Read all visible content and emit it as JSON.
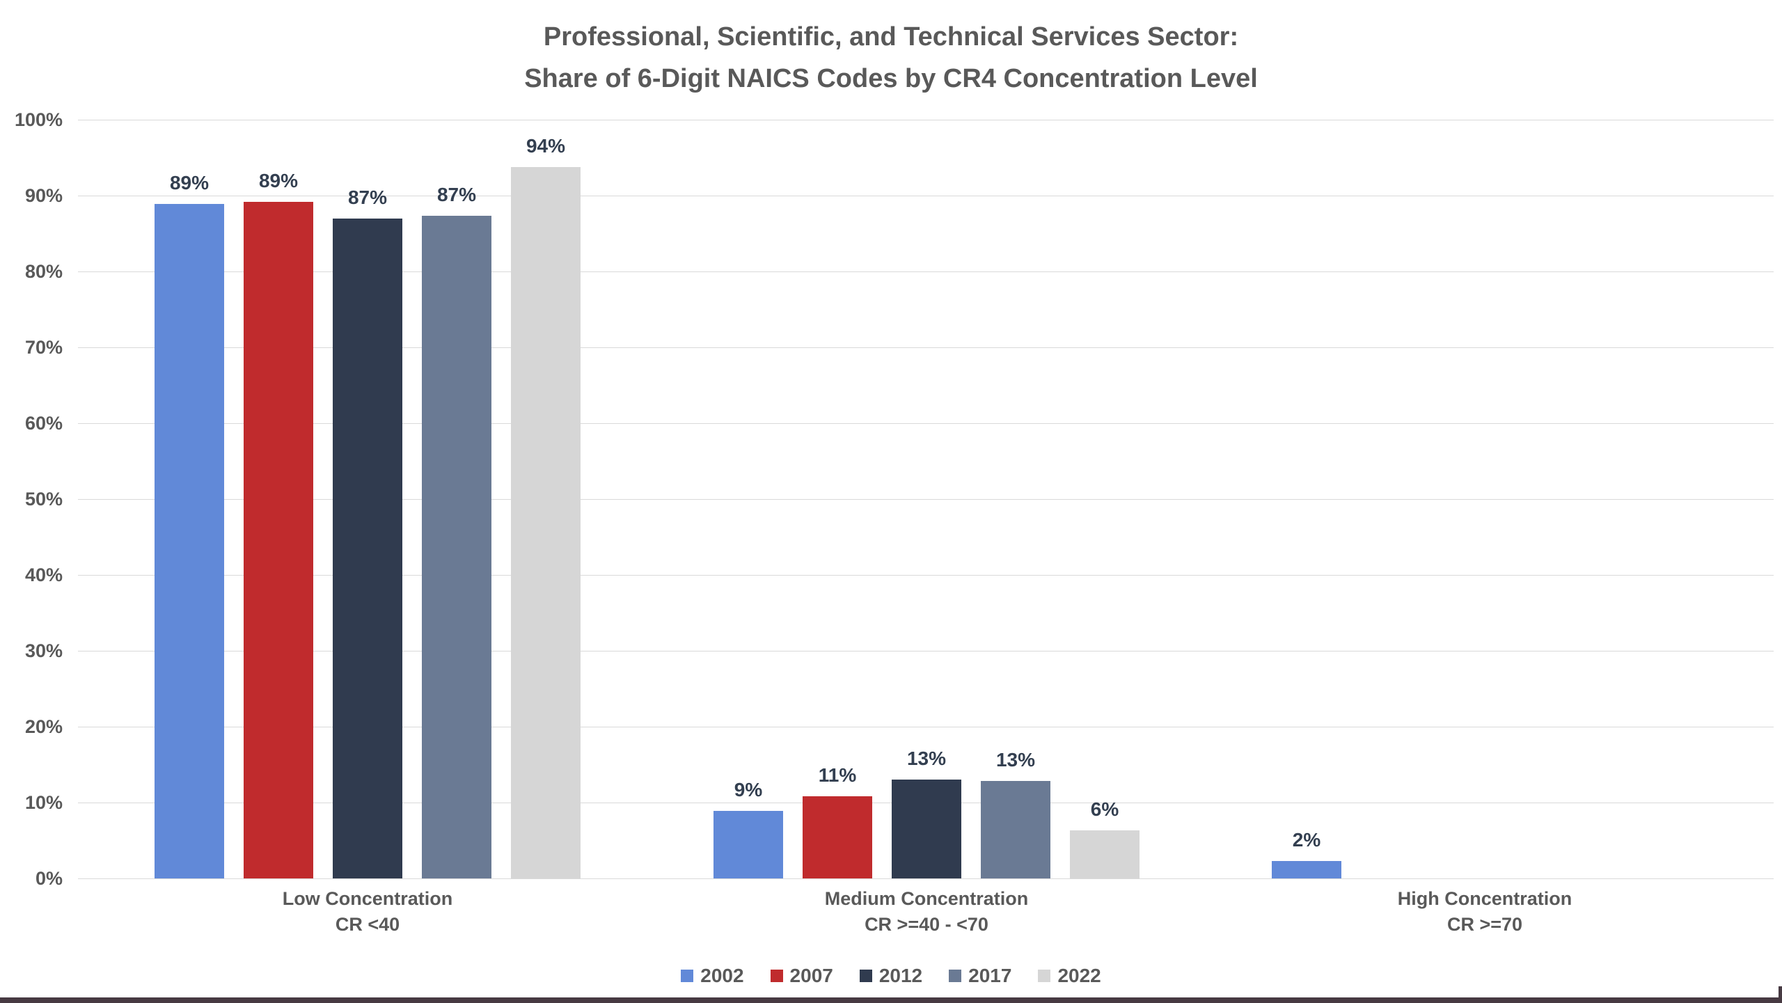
{
  "chart_data": {
    "type": "bar",
    "title": "Professional, Scientific, and Technical Services Sector:",
    "subtitle": "Share of 6-Digit NAICS Codes by CR4 Concentration Level",
    "categories": [
      {
        "line1": "Low Concentration",
        "line2": "CR <40"
      },
      {
        "line1": "Medium Concentration",
        "line2": "CR >=40 - <70"
      },
      {
        "line1": "High Concentration",
        "line2": "CR >=70"
      }
    ],
    "series": [
      {
        "name": "2002",
        "color": "#6189d8",
        "values": [
          88.9,
          8.9,
          2.3
        ],
        "labels": [
          "89%",
          "9%",
          "2%"
        ]
      },
      {
        "name": "2007",
        "color": "#c02b2d",
        "values": [
          89.2,
          10.8,
          0
        ],
        "labels": [
          "89%",
          "11%",
          ""
        ]
      },
      {
        "name": "2012",
        "color": "#303b4f",
        "values": [
          87.0,
          13.0,
          0
        ],
        "labels": [
          "87%",
          "13%",
          ""
        ]
      },
      {
        "name": "2017",
        "color": "#6a7a94",
        "values": [
          87.3,
          12.8,
          0
        ],
        "labels": [
          "87%",
          "13%",
          ""
        ]
      },
      {
        "name": "2022",
        "color": "#d6d6d6",
        "values": [
          93.8,
          6.3,
          0
        ],
        "labels": [
          "94%",
          "6%",
          ""
        ]
      }
    ],
    "y_axis": {
      "min": 0,
      "max": 100,
      "step": 10,
      "tick_labels": [
        "0%",
        "10%",
        "20%",
        "30%",
        "40%",
        "50%",
        "60%",
        "70%",
        "80%",
        "90%",
        "100%"
      ]
    },
    "grid": true,
    "legend_position": "bottom",
    "gridline_color": "#d9d9d9",
    "axis_text_color": "#595959",
    "data_label_color": "#333f50",
    "frame_color": "#473a42"
  }
}
